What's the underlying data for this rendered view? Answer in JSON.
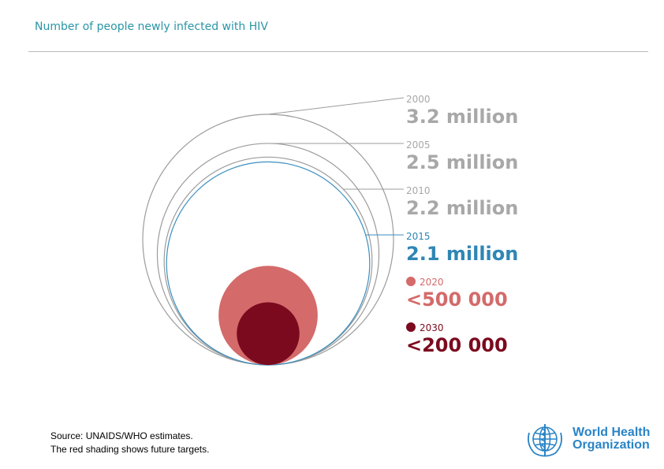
{
  "title": "Number of people newly infected with HIV",
  "chart_data": {
    "type": "proportional-circles",
    "title": "Number of people newly infected with HIV",
    "series": [
      {
        "year": "2000",
        "label": "3.2 million",
        "value": 3200000,
        "color": "#a8a8a8",
        "circle_stroke": "#9c9c9c",
        "filled": false
      },
      {
        "year": "2005",
        "label": "2.5 million",
        "value": 2500000,
        "color": "#a8a8a8",
        "circle_stroke": "#9c9c9c",
        "filled": false
      },
      {
        "year": "2010",
        "label": "2.2 million",
        "value": 2200000,
        "color": "#a8a8a8",
        "circle_stroke": "#9c9c9c",
        "filled": false
      },
      {
        "year": "2015",
        "label": "2.1 million",
        "value": 2100000,
        "color": "#2f86b4",
        "circle_stroke": "#3c8fbf",
        "filled": false
      },
      {
        "year": "2020",
        "label": "<500 000",
        "value": 500000,
        "color": "#d46a6a",
        "circle_stroke": "#d46a6a",
        "filled": true
      },
      {
        "year": "2030",
        "label": "<200 000",
        "value": 200000,
        "color": "#7b0a1e",
        "circle_stroke": "#7b0a1e",
        "filled": true
      }
    ]
  },
  "source": {
    "line1": "Source: UNAIDS/WHO estimates.",
    "line2": "The red shading shows future targets."
  },
  "logo": {
    "line1": "World Health",
    "line2": "Organization",
    "color": "#2a84c6"
  }
}
